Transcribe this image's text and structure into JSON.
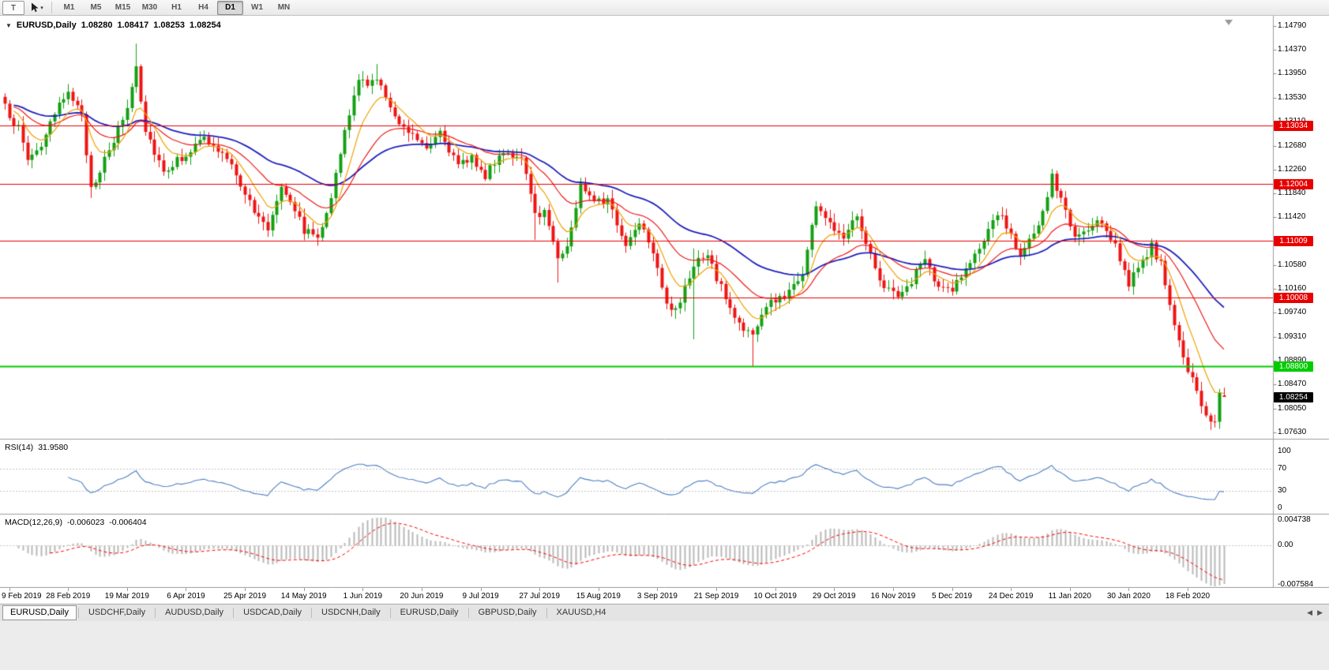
{
  "toolbar": {
    "chart_button": "T",
    "timeframes": [
      {
        "label": "M1",
        "active": false
      },
      {
        "label": "M5",
        "active": false
      },
      {
        "label": "M15",
        "active": false
      },
      {
        "label": "M30",
        "active": false
      },
      {
        "label": "H1",
        "active": false
      },
      {
        "label": "H4",
        "active": false
      },
      {
        "label": "D1",
        "active": true
      },
      {
        "label": "W1",
        "active": false
      },
      {
        "label": "MN",
        "active": false
      }
    ]
  },
  "chart": {
    "symbol_title": "EURUSD,Daily",
    "ohlc": {
      "open": "1.08280",
      "high": "1.08417",
      "low": "1.08253",
      "close": "1.08254"
    },
    "price_axis_labels": [
      "1.14790",
      "1.14370",
      "1.13950",
      "1.13530",
      "1.13110",
      "1.12680",
      "1.12260",
      "1.11840",
      "1.11420",
      "1.11000",
      "1.10580",
      "1.10160",
      "1.09740",
      "1.09310",
      "1.08890",
      "1.08470",
      "1.08050",
      "1.07630"
    ],
    "horizontal_lines": [
      {
        "price": 1.13034,
        "label": "1.13034",
        "color": "#e80000",
        "width": 1,
        "type": "resistance"
      },
      {
        "price": 1.12004,
        "label": "1.12004",
        "color": "#e80000",
        "width": 1,
        "type": "resistance"
      },
      {
        "price": 1.11009,
        "label": "1.11009",
        "color": "#e80000",
        "width": 1,
        "type": "resistance"
      },
      {
        "price": 1.10008,
        "label": "1.10008",
        "color": "#e80000",
        "width": 1,
        "type": "resistance"
      },
      {
        "price": 1.088,
        "label": "1.08800",
        "color": "#00cc00",
        "width": 2,
        "type": "support"
      }
    ],
    "current_price_tag": {
      "price": 1.08254,
      "label": "1.08254",
      "bg": "#000000",
      "fg": "#ffffff"
    },
    "date_axis_labels": [
      "9 Feb 2019",
      "28 Feb 2019",
      "19 Mar 2019",
      "6 Apr 2019",
      "25 Apr 2019",
      "14 May 2019",
      "1 Jun 2019",
      "20 Jun 2019",
      "9 Jul 2019",
      "27 Jul 2019",
      "15 Aug 2019",
      "3 Sep 2019",
      "21 Sep 2019",
      "10 Oct 2019",
      "29 Oct 2019",
      "16 Nov 2019",
      "5 Dec 2019",
      "24 Dec 2019",
      "11 Jan 2020",
      "30 Jan 2020",
      "18 Feb 2020"
    ]
  },
  "indicators": {
    "rsi": {
      "name": "RSI(14)",
      "value": "31.9580",
      "period": 14,
      "levels": [
        70,
        30
      ],
      "line_color": "#4e7fc4",
      "scale": [
        {
          "text": "100",
          "value": 100
        },
        {
          "text": "70",
          "value": 70
        },
        {
          "text": "30",
          "value": 30
        },
        {
          "text": "0",
          "value": 0
        }
      ]
    },
    "macd": {
      "name": "MACD(12,26,9)",
      "main_value": "-0.006023",
      "signal_value": "-0.006404",
      "fast": 12,
      "slow": 26,
      "signal_period": 9,
      "hist_color": "#b8b8b8",
      "signal_color": "#ff0000",
      "scale": [
        {
          "text": "0.004738",
          "value": 0.004738
        },
        {
          "text": "0.00",
          "value": 0
        },
        {
          "text": "-0.007584",
          "value": -0.007584
        }
      ]
    }
  },
  "tabs": [
    {
      "label": "EURUSD,Daily",
      "active": true
    },
    {
      "label": "USDCHF,Daily",
      "active": false
    },
    {
      "label": "AUDUSD,Daily",
      "active": false
    },
    {
      "label": "USDCAD,Daily",
      "active": false
    },
    {
      "label": "USDCNH,Daily",
      "active": false
    },
    {
      "label": "EURUSD,Daily",
      "active": false
    },
    {
      "label": "GBPUSD,Daily",
      "active": false
    },
    {
      "label": "XAUUSD,H4",
      "active": false
    }
  ],
  "chart_data": {
    "type": "candlestick",
    "symbol": "EURUSD",
    "timeframe": "D1",
    "bar_count": 270,
    "price_max": 1.1497,
    "price_min": 1.0753,
    "noise": 0.0016,
    "up_color": "#13a013",
    "down_color": "#ee1414",
    "close_anchors": [
      [
        0,
        1.1335
      ],
      [
        3,
        1.1298
      ],
      [
        5,
        1.1245
      ],
      [
        8,
        1.127
      ],
      [
        11,
        1.132
      ],
      [
        14,
        1.137
      ],
      [
        17,
        1.1316
      ],
      [
        19,
        1.1196
      ],
      [
        23,
        1.1256
      ],
      [
        27,
        1.1336
      ],
      [
        29,
        1.141
      ],
      [
        31,
        1.1296
      ],
      [
        35,
        1.1224
      ],
      [
        39,
        1.1248
      ],
      [
        44,
        1.128
      ],
      [
        48,
        1.1252
      ],
      [
        51,
        1.122
      ],
      [
        55,
        1.115
      ],
      [
        58,
        1.1122
      ],
      [
        61,
        1.12
      ],
      [
        63,
        1.1175
      ],
      [
        66,
        1.112
      ],
      [
        69,
        1.1108
      ],
      [
        72,
        1.118
      ],
      [
        75,
        1.129
      ],
      [
        78,
        1.1388
      ],
      [
        80,
        1.137
      ],
      [
        82,
        1.1392
      ],
      [
        85,
        1.133
      ],
      [
        89,
        1.1296
      ],
      [
        93,
        1.1268
      ],
      [
        96,
        1.1296
      ],
      [
        100,
        1.123
      ],
      [
        103,
        1.125
      ],
      [
        106,
        1.1214
      ],
      [
        110,
        1.1262
      ],
      [
        114,
        1.1242
      ],
      [
        117,
        1.1148
      ],
      [
        119,
        1.1152
      ],
      [
        122,
        1.1076
      ],
      [
        124,
        1.1088
      ],
      [
        127,
        1.1198
      ],
      [
        130,
        1.1178
      ],
      [
        133,
        1.117
      ],
      [
        137,
        1.1092
      ],
      [
        140,
        1.1138
      ],
      [
        143,
        1.1086
      ],
      [
        146,
        1.0992
      ],
      [
        148,
        1.0974
      ],
      [
        151,
        1.1036
      ],
      [
        152,
        1.1062
      ],
      [
        155,
        1.1072
      ],
      [
        158,
        1.1018
      ],
      [
        161,
        1.0964
      ],
      [
        165,
        1.0932
      ],
      [
        168,
        1.0986
      ],
      [
        172,
        1.1004
      ],
      [
        176,
        1.1044
      ],
      [
        179,
        1.1166
      ],
      [
        182,
        1.1128
      ],
      [
        185,
        1.1112
      ],
      [
        188,
        1.115
      ],
      [
        191,
        1.1074
      ],
      [
        194,
        1.1018
      ],
      [
        198,
        1.1004
      ],
      [
        201,
        1.1046
      ],
      [
        203,
        1.1066
      ],
      [
        206,
        1.1014
      ],
      [
        209,
        1.1018
      ],
      [
        213,
        1.106
      ],
      [
        218,
        1.113
      ],
      [
        220,
        1.1146
      ],
      [
        224,
        1.1078
      ],
      [
        228,
        1.112
      ],
      [
        231,
        1.1212
      ],
      [
        233,
        1.1174
      ],
      [
        236,
        1.1106
      ],
      [
        239,
        1.1118
      ],
      [
        242,
        1.1136
      ],
      [
        245,
        1.1092
      ],
      [
        248,
        1.1026
      ],
      [
        251,
        1.106
      ],
      [
        253,
        1.1093
      ],
      [
        255,
        1.1058
      ],
      [
        258,
        1.0946
      ],
      [
        261,
        1.0874
      ],
      [
        263,
        1.0832
      ],
      [
        265,
        1.0794
      ],
      [
        267,
        1.0782
      ],
      [
        268,
        1.0838
      ],
      [
        269,
        1.0825
      ]
    ],
    "spikes": [
      {
        "i": 5,
        "l": 1.1234
      },
      {
        "i": 19,
        "l": 1.1176
      },
      {
        "i": 29,
        "h": 1.1448
      },
      {
        "i": 82,
        "h": 1.1412
      },
      {
        "i": 117,
        "l": 1.1102
      },
      {
        "i": 122,
        "l": 1.1027
      },
      {
        "i": 152,
        "h": 1.1087,
        "l": 1.0927
      },
      {
        "i": 165,
        "l": 1.0879
      },
      {
        "i": 267,
        "l": 1.0778
      }
    ],
    "last_bar": {
      "o": 1.0828,
      "h": 1.08417,
      "l": 1.08253,
      "c": 1.08254
    },
    "moving_averages": [
      {
        "period": 45,
        "color": "#2020bb",
        "width": 1.8
      },
      {
        "period": 21,
        "color": "#f01818",
        "width": 1.2
      },
      {
        "period": 8,
        "color": "#f0a000",
        "width": 1.2
      }
    ]
  }
}
